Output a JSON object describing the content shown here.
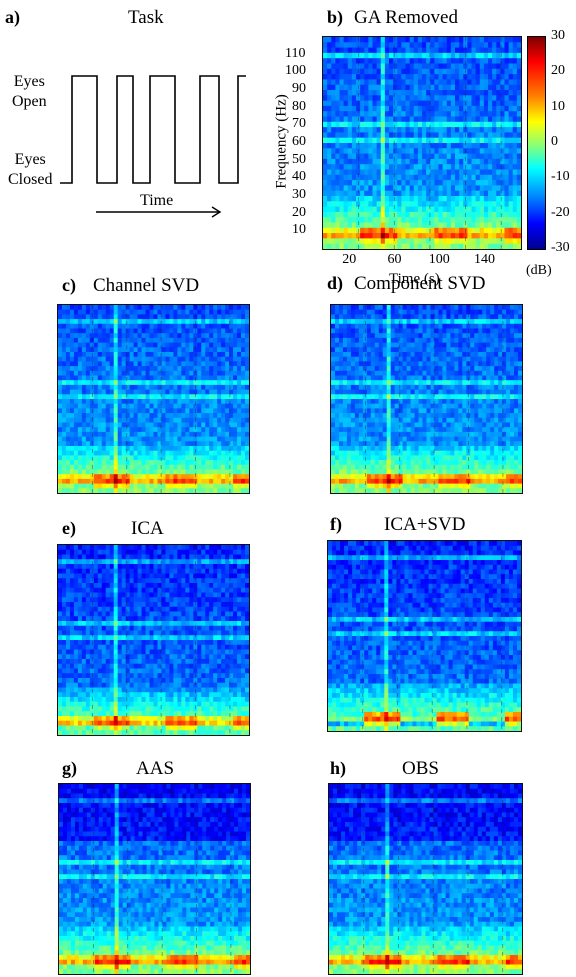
{
  "panels": {
    "a": {
      "label": "a)",
      "title": "Task",
      "eyes_open": "Eyes\nOpen",
      "eyes_closed": "Eyes\nClosed",
      "time": "Time"
    },
    "b": {
      "label": "b)",
      "title": "GA Removed",
      "ylabel": "Frequency (Hz)",
      "xlabel": "Time (s)",
      "yticks": [
        "110",
        "100",
        "90",
        "80",
        "70",
        "60",
        "50",
        "40",
        "30",
        "20",
        "10"
      ],
      "xticks": [
        "20",
        "60",
        "100",
        "140"
      ],
      "cbar_ticks": [
        "30",
        "20",
        "10",
        "0",
        "-10",
        "-20",
        "-30"
      ],
      "cbar_unit": "(dB)"
    },
    "c": {
      "label": "c)",
      "title": "Channel SVD"
    },
    "d": {
      "label": "d)",
      "title": "Component SVD"
    },
    "e": {
      "label": "e)",
      "title": "ICA"
    },
    "f": {
      "label": "f)",
      "title": "ICA+SVD"
    },
    "g": {
      "label": "g)",
      "title": "AAS"
    },
    "h": {
      "label": "h)",
      "title": "OBS"
    }
  },
  "colors": {
    "low": "#00008f",
    "mid": "#00ffff",
    "high": "#ff0000"
  }
}
